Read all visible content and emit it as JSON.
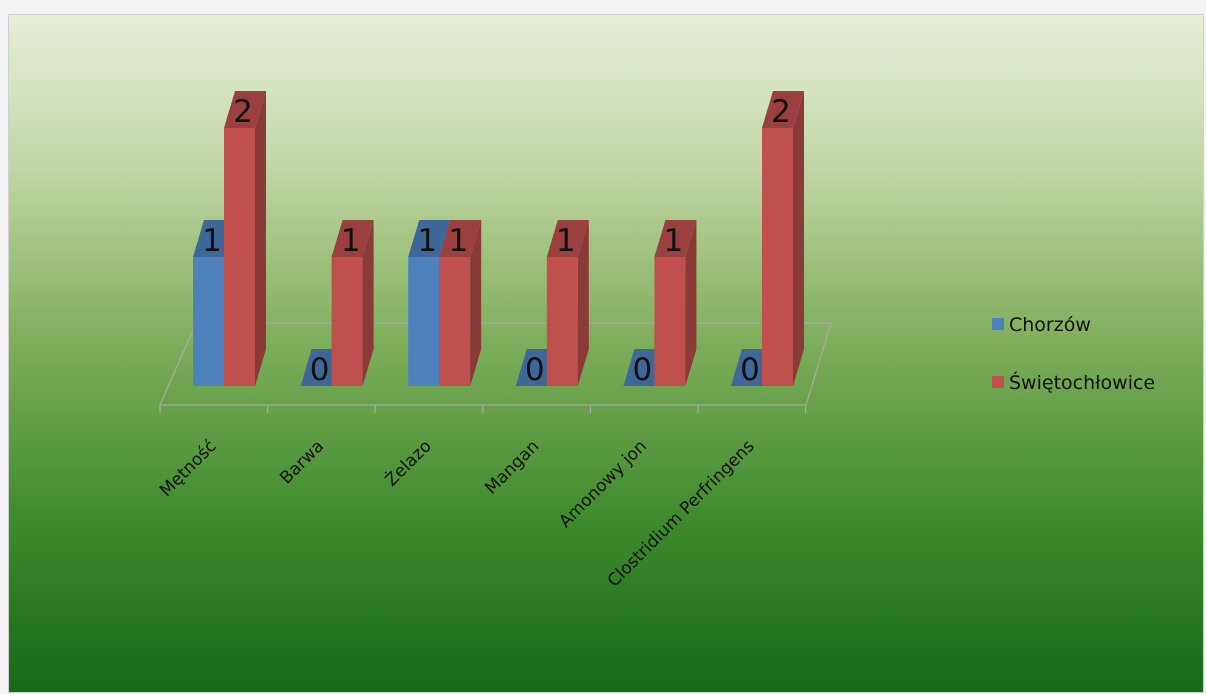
{
  "chart_data": {
    "type": "bar",
    "title": "",
    "xlabel": "",
    "ylabel": "",
    "categories": [
      "Mętność",
      "Barwa",
      "Żelazo",
      "Mangan",
      "Amonowy jon",
      "Clostridium Perfringens"
    ],
    "series": [
      {
        "name": "Chorzów",
        "values": [
          1,
          0,
          1,
          0,
          0,
          0
        ]
      },
      {
        "name": "Świętochłowice",
        "values": [
          2,
          1,
          1,
          1,
          1,
          2
        ]
      }
    ],
    "ylim": [
      0,
      2
    ],
    "data_labels": true,
    "grid": false,
    "legend_position": "right",
    "colors": {
      "Chorzów": "#4f81bd",
      "Świętochłowice": "#c0504d"
    }
  }
}
